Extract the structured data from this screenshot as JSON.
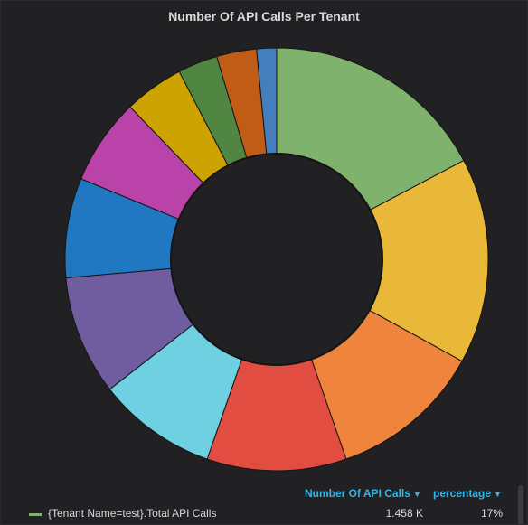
{
  "panel": {
    "title": "Number Of API Calls Per Tenant"
  },
  "legend": {
    "columns": [
      {
        "label": "Number Of API Calls"
      },
      {
        "label": "percentage"
      }
    ],
    "rows": [
      {
        "name": "{Tenant Name=test}.Total API Calls",
        "value": "1.458 K",
        "percent": "17%",
        "color": "#7eb26d"
      }
    ]
  },
  "chart_data": {
    "type": "pie",
    "style": "donut",
    "series": [
      {
        "value": 17,
        "color": "#7eb26d"
      },
      {
        "value": 15.5,
        "color": "#eab839"
      },
      {
        "value": 11.5,
        "color": "#ef843c"
      },
      {
        "value": 10.5,
        "color": "#e24d42"
      },
      {
        "value": 9,
        "color": "#6ed0e0"
      },
      {
        "value": 9,
        "color": "#705da0"
      },
      {
        "value": 7.5,
        "color": "#1f78c1"
      },
      {
        "value": 6.5,
        "color": "#ba43a9"
      },
      {
        "value": 4.5,
        "color": "#cca300"
      },
      {
        "value": 3,
        "color": "#508642"
      },
      {
        "value": 3,
        "color": "#c15c17"
      },
      {
        "value": 1.5,
        "color": "#447ebc"
      }
    ]
  }
}
